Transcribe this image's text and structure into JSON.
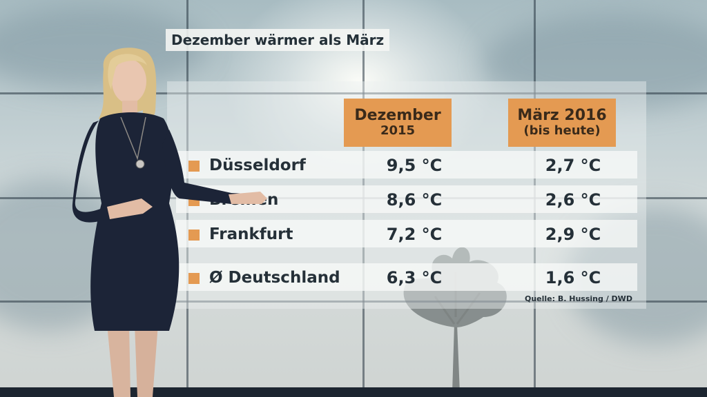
{
  "headline": "Dezember wärmer als März",
  "columns": {
    "december": {
      "line1": "Dezember",
      "line2": "2015"
    },
    "march": {
      "line1": "März 2016",
      "line2": "(bis heute)"
    }
  },
  "rows": [
    {
      "city": "Düsseldorf",
      "december": "9,5 °C",
      "march": "2,7 °C"
    },
    {
      "city": "Bremen",
      "december": "8,6 °C",
      "march": "2,6 °C"
    },
    {
      "city": "Frankfurt",
      "december": "7,2 °C",
      "march": "2,9 °C"
    },
    {
      "city": "Ø Deutschland",
      "december": "6,3 °C",
      "march": "1,6 °C"
    }
  ],
  "source": "Quelle: B. Hussing / DWD",
  "colors": {
    "accent": "#e49a52",
    "text": "#253038",
    "row_background": "#fafbfa"
  }
}
